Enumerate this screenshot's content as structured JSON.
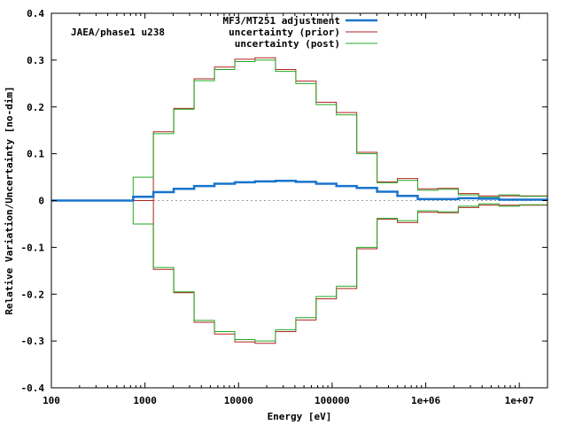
{
  "chart_data": {
    "type": "line",
    "step": true,
    "title": "",
    "annotation": "JAEA/phase1 u238",
    "xlabel": "Energy [eV]",
    "ylabel": "Relative Variation/Uncertainty [no-dim]",
    "xscale": "log",
    "xlim": [
      100,
      20000000
    ],
    "ylim": [
      -0.4,
      0.4
    ],
    "x_ticks": [
      100,
      1000,
      10000,
      100000,
      1000000,
      10000000
    ],
    "x_tick_labels": [
      "100",
      "1000",
      "10000",
      "100000",
      "1e+06",
      "1e+07"
    ],
    "y_ticks": [
      -0.4,
      -0.3,
      -0.2,
      -0.1,
      0,
      0.1,
      0.2,
      0.3,
      0.4
    ],
    "y_tick_labels": [
      "-0.4",
      "-0.3",
      "-0.2",
      "-0.1",
      "0",
      "0.1",
      "0.2",
      "0.3",
      "0.4"
    ],
    "zero_line": true,
    "legend_position": "top-right",
    "bin_edges": [
      100,
      748,
      1230,
      2030,
      3350,
      5530,
      9120,
      15000,
      24800,
      40900,
      67400,
      111000,
      183000,
      302000,
      498000,
      821000,
      1350000,
      2230000,
      3680000,
      6070000,
      10000000,
      20000000
    ],
    "series": [
      {
        "name": "MF3/MT251 adjustment",
        "color": "#1874cd",
        "values": [
          0.0,
          0.008,
          0.018,
          0.025,
          0.031,
          0.036,
          0.039,
          0.041,
          0.042,
          0.04,
          0.036,
          0.031,
          0.027,
          0.019,
          0.01,
          0.003,
          0.003,
          0.005,
          0.004,
          0.002,
          0.002
        ]
      },
      {
        "name": "uncertainty (prior)",
        "color": "#b22222",
        "symmetric": true,
        "values": [
          0.0,
          0.0,
          0.147,
          0.197,
          0.26,
          0.285,
          0.302,
          0.305,
          0.28,
          0.255,
          0.21,
          0.188,
          0.103,
          0.04,
          0.047,
          0.025,
          0.026,
          0.015,
          0.01,
          0.01,
          0.01
        ]
      },
      {
        "name": "uncertainty (post)",
        "color": "#22aa22",
        "symmetric": true,
        "values": [
          0.0,
          0.05,
          0.143,
          0.195,
          0.256,
          0.28,
          0.297,
          0.3,
          0.276,
          0.25,
          0.205,
          0.183,
          0.1,
          0.038,
          0.043,
          0.022,
          0.024,
          0.012,
          0.007,
          0.012,
          0.009
        ]
      }
    ]
  }
}
